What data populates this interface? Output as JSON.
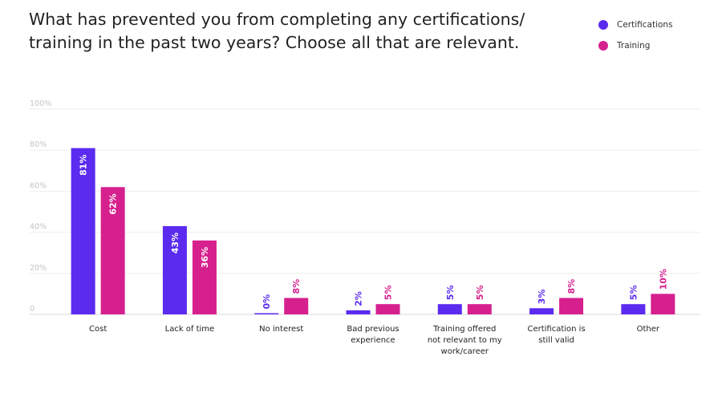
{
  "chart_data": {
    "type": "bar",
    "title": "What has prevented you from completing any certifications/ training in the past two years? Choose all that are relevant.",
    "categories": [
      [
        "Cost"
      ],
      [
        "Lack of time"
      ],
      [
        "No interest"
      ],
      [
        "Bad previous",
        "experience"
      ],
      [
        "Training offered",
        "not relevant to my",
        "work/career"
      ],
      [
        "Certification is",
        "still valid"
      ],
      [
        "Other"
      ]
    ],
    "series": [
      {
        "name": "Certifications",
        "color": "#5b2bf0",
        "values": [
          81,
          43,
          0,
          2,
          5,
          3,
          5
        ],
        "labels": [
          "81%",
          "43%",
          "0%",
          "2%",
          "5%",
          "3%",
          "5%"
        ]
      },
      {
        "name": "Training",
        "color": "#d6208e",
        "values": [
          62,
          36,
          8,
          5,
          5,
          8,
          10
        ],
        "labels": [
          "62%",
          "36%",
          "8%",
          "5%",
          "5%",
          "8%",
          "10%"
        ]
      }
    ],
    "yticks": [
      "0",
      "20%",
      "40%",
      "60%",
      "80%",
      "100%"
    ],
    "ylim": [
      0,
      100
    ],
    "grid": true,
    "legend": "top-right"
  }
}
